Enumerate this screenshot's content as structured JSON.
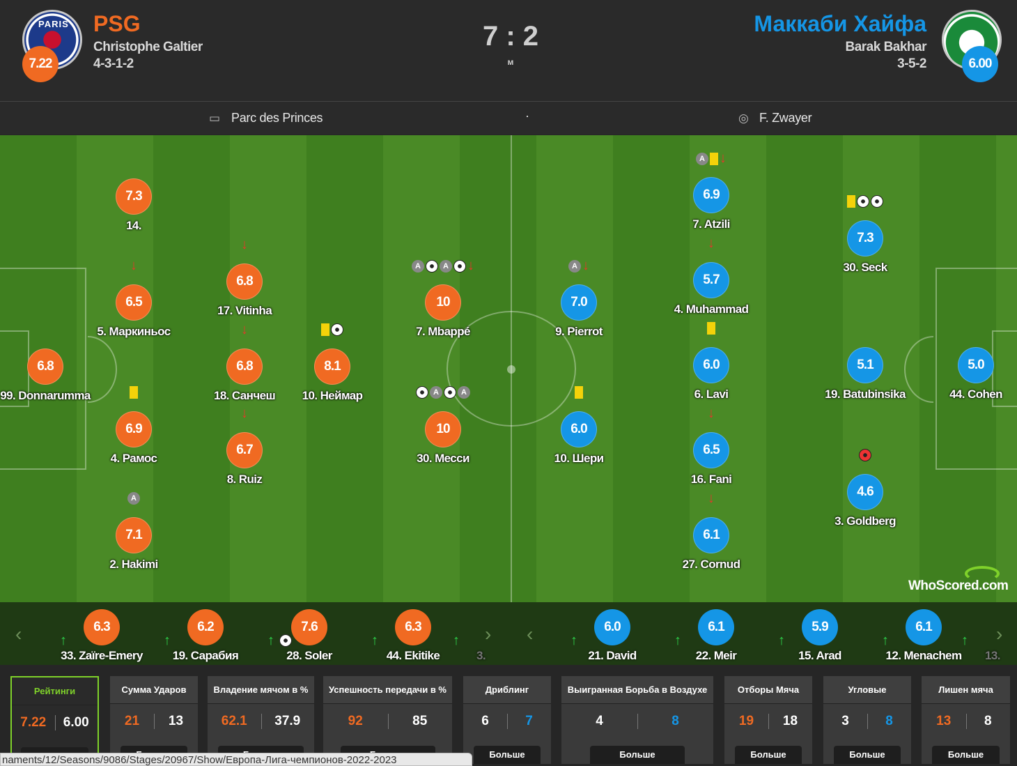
{
  "home": {
    "name": "PSG",
    "coach": "Christophe Galtier",
    "formation": "4-3-1-2",
    "rating": "7.22",
    "crest_text": "PARIS",
    "color": "#f06a22"
  },
  "away": {
    "name": "Маккаби Хайфа",
    "coach": "Barak Bakhar",
    "formation": "3-5-2",
    "rating": "6.00",
    "color": "#1596e6"
  },
  "score": {
    "value": "7 : 2",
    "status": "м"
  },
  "info": {
    "venue": "Parc des Princes",
    "dot": "·",
    "referee": "F. Zwayer"
  },
  "home_players": [
    {
      "rating": "7.3",
      "name": "14.",
      "icons": []
    },
    {
      "rating": "6.5",
      "name": "5. Маркиньос",
      "icons": [
        "arrow-down"
      ]
    },
    {
      "rating": "6.8",
      "name": "99. Donnarumma",
      "icons": []
    },
    {
      "rating": "6.9",
      "name": "4. Рамос",
      "icons": [
        "yellow-card"
      ]
    },
    {
      "rating": "7.1",
      "name": "2. Hakimi",
      "icons": [
        "assist"
      ]
    },
    {
      "rating": "6.8",
      "name": "17. Vitinha",
      "icons": [
        "arrow-down"
      ]
    },
    {
      "rating": "6.8",
      "name": "18. Санчеш",
      "icons": [
        "arrow-down"
      ]
    },
    {
      "rating": "6.7",
      "name": "8. Ruiz",
      "icons": [
        "arrow-down"
      ]
    },
    {
      "rating": "8.1",
      "name": "10. Неймар",
      "icons": [
        "yellow-card",
        "goal"
      ]
    },
    {
      "rating": "10",
      "name": "7. Mbappé",
      "icons": [
        "assist",
        "goal",
        "assist",
        "goal",
        "arrow-down"
      ]
    },
    {
      "rating": "10",
      "name": "30. Месси",
      "icons": [
        "goal",
        "assist",
        "goal",
        "assist"
      ]
    }
  ],
  "away_players": [
    {
      "rating": "7.0",
      "name": "9. Pierrot",
      "icons": [
        "assist",
        "arrow-down"
      ]
    },
    {
      "rating": "6.0",
      "name": "10. Шери",
      "icons": [
        "yellow-card"
      ]
    },
    {
      "rating": "6.9",
      "name": "7. Atzili",
      "icons": [
        "assist",
        "yellow-card",
        "arrow-down"
      ]
    },
    {
      "rating": "5.7",
      "name": "4. Muhammad",
      "icons": [
        "arrow-down"
      ]
    },
    {
      "rating": "6.0",
      "name": "6. Lavi",
      "icons": [
        "yellow-card"
      ]
    },
    {
      "rating": "6.5",
      "name": "16. Fani",
      "icons": [
        "arrow-down"
      ]
    },
    {
      "rating": "6.1",
      "name": "27. Cornud",
      "icons": [
        "arrow-down"
      ]
    },
    {
      "rating": "7.3",
      "name": "30. Seck",
      "icons": [
        "yellow-card",
        "goal",
        "goal"
      ]
    },
    {
      "rating": "5.1",
      "name": "19. Batubinsika",
      "icons": []
    },
    {
      "rating": "4.6",
      "name": "3. Goldberg",
      "icons": [
        "own-goal"
      ]
    },
    {
      "rating": "5.0",
      "name": "44. Cohen",
      "icons": []
    }
  ],
  "home_subs": [
    {
      "rating": "6.3",
      "name": "33. Zaïre-Emery",
      "icons": []
    },
    {
      "rating": "6.2",
      "name": "19. Сарабия",
      "icons": []
    },
    {
      "rating": "7.6",
      "name": "28. Soler",
      "icons": [
        "goal"
      ]
    },
    {
      "rating": "6.3",
      "name": "44. Ekitike",
      "icons": []
    },
    {
      "rating": "",
      "name": "3.",
      "icons": []
    }
  ],
  "away_subs": [
    {
      "rating": "6.0",
      "name": "21. David"
    },
    {
      "rating": "6.1",
      "name": "22. Meir"
    },
    {
      "rating": "5.9",
      "name": "15. Arad"
    },
    {
      "rating": "6.1",
      "name": "12. Menachem"
    },
    {
      "rating": "",
      "name": "13."
    }
  ],
  "brand": {
    "text": "WhoScored",
    "suffix": ".com"
  },
  "stats": [
    {
      "title": "Рейтинги",
      "home": "7.22",
      "away": "6.00",
      "more": "Больше",
      "highlight": true
    },
    {
      "title": "Сумма Ударов",
      "home": "21",
      "away": "13",
      "more": "Больше"
    },
    {
      "title": "Владение мячом в %",
      "home": "62.1",
      "away": "37.9",
      "more": "Больше"
    },
    {
      "title": "Успешность передачи в %",
      "home": "92",
      "away": "85",
      "more": "Больше"
    },
    {
      "title": "Дриблинг",
      "home": "6",
      "away": "7",
      "more": "Больше"
    },
    {
      "title": "Выигранная Борьба в Воздухе",
      "home": "4",
      "away": "8",
      "more": "Больше"
    },
    {
      "title": "Отборы Мяча",
      "home": "19",
      "away": "18",
      "more": "Больше"
    },
    {
      "title": "Угловые",
      "home": "3",
      "away": "8",
      "more": "Больше"
    },
    {
      "title": "Лишен мяча",
      "home": "13",
      "away": "8",
      "more": "Больше"
    }
  ],
  "status_url": "naments/12/Seasons/9086/Stages/20967/Show/Европа-Лига-чемпионов-2022-2023"
}
